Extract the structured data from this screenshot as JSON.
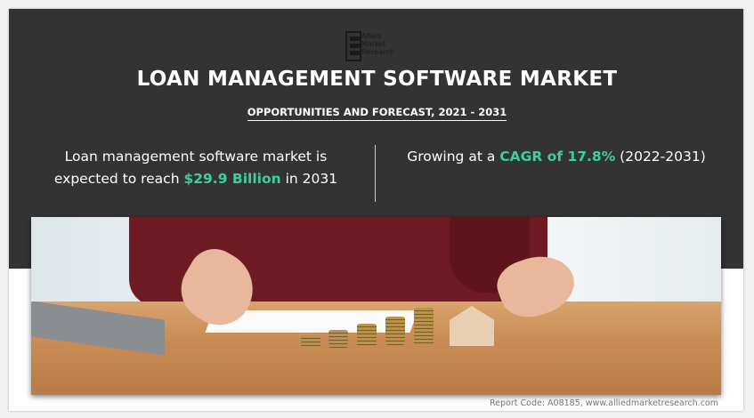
{
  "logo": {
    "line1": "Allied",
    "line2": "Market",
    "line3": "Research"
  },
  "title": "LOAN MANAGEMENT SOFTWARE MARKET",
  "subtitle": "OPPORTUNITIES AND FORECAST, 2021 - 2031",
  "left_stat": {
    "line1": "Loan management software market is",
    "pre": "expected to reach ",
    "value": "$29.9 Billion",
    "post": " in 2031"
  },
  "right_stat": {
    "pre": "Growing at a ",
    "value": "CAGR of 17.8%",
    "post": " (2022-2031)"
  },
  "footer": "Report Code: A08185, www.alliedmarketresearch.com",
  "colors": {
    "background": "#333333",
    "highlight": "#3ecfa0"
  }
}
